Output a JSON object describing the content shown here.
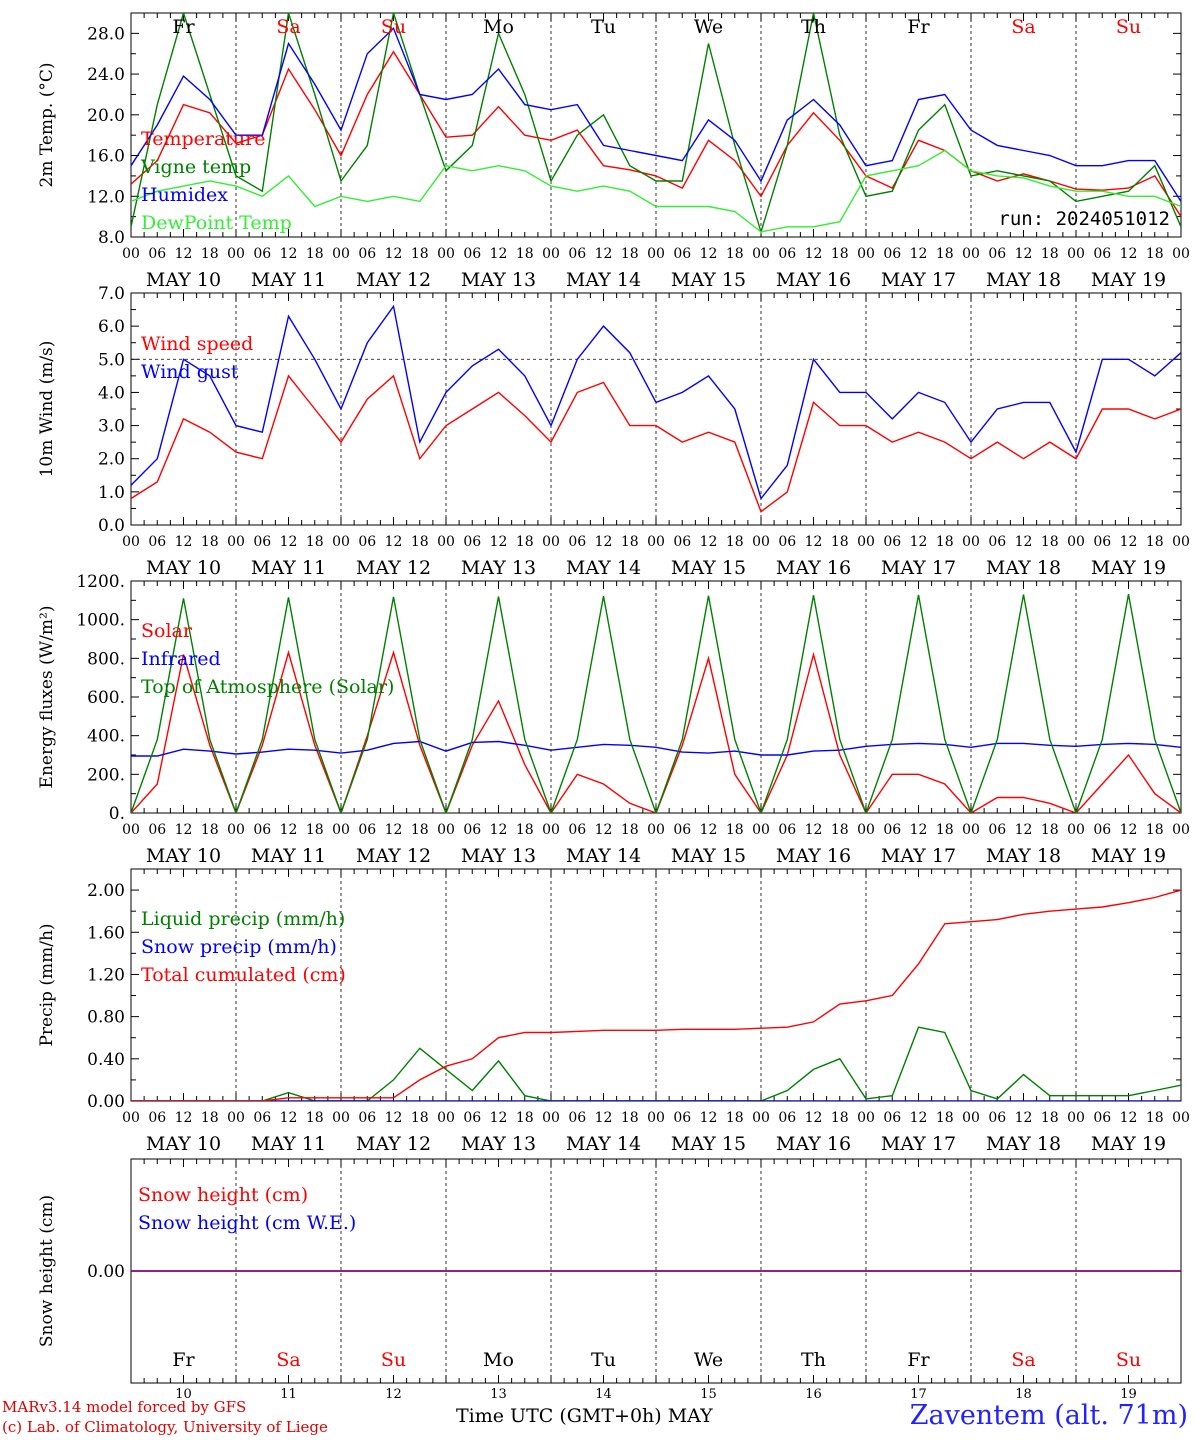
{
  "run_label": "run: 2024051012",
  "station": "Zaventem (alt. 71m)",
  "credit_lines": [
    "MARv3.14 model forced by GFS",
    "(c) Lab. of Climatology, University of Liege"
  ],
  "x_axis_label": "Time UTC (GMT+0h) MAY",
  "days": {
    "names": [
      "Fr",
      "Sa",
      "Su",
      "Mo",
      "Tu",
      "We",
      "Th",
      "Fr",
      "Sa",
      "Su"
    ],
    "weekend": [
      false,
      true,
      true,
      false,
      false,
      false,
      false,
      false,
      true,
      true
    ],
    "dates": [
      "MAY 10",
      "MAY 11",
      "MAY 12",
      "MAY 13",
      "MAY 14",
      "MAY 15",
      "MAY 16",
      "MAY 17",
      "MAY 18",
      "MAY 19"
    ],
    "numbers": [
      "10",
      "11",
      "12",
      "13",
      "14",
      "15",
      "16",
      "17",
      "18",
      "19"
    ],
    "hour_ticks": [
      "00",
      "06",
      "12",
      "18"
    ],
    "end_tick": "00"
  },
  "colors": {
    "red": "#ff0000",
    "green": "#008000",
    "blue": "#0000ff",
    "lightgreen": "#33ee33",
    "purple": "#800080"
  },
  "chart_data": [
    {
      "type": "line",
      "id": "temp",
      "ylabel": "2m Temp. (°C)",
      "ylim": [
        8,
        30
      ],
      "yticks": [
        "8.0",
        "12.0",
        "16.0",
        "20.0",
        "24.0",
        "28.0"
      ],
      "ytick_values": [
        8,
        12,
        16,
        20,
        24,
        28
      ],
      "hline": null,
      "legend": [
        "Temperature",
        "Vigne temp",
        "Humidex",
        "DewPoint Temp"
      ],
      "x_hours": [
        0,
        6,
        12,
        18,
        24,
        30,
        36,
        42,
        48,
        54,
        60,
        66,
        72,
        78,
        84,
        90,
        96,
        102,
        108,
        114,
        120,
        126,
        132,
        138,
        144,
        150,
        156,
        162,
        168,
        174,
        180,
        186,
        192,
        198,
        204,
        210,
        216,
        222,
        228,
        234,
        240
      ],
      "series": [
        {
          "name": "Temperature",
          "color": "red",
          "values": [
            13.2,
            15.5,
            21.0,
            20.2,
            17.2,
            18.0,
            24.5,
            20.5,
            16.0,
            22.0,
            26.2,
            22.0,
            17.8,
            18.0,
            20.8,
            18.0,
            17.5,
            18.5,
            15.0,
            14.6,
            14.0,
            12.8,
            17.5,
            15.5,
            12.0,
            17.0,
            20.2,
            17.5,
            14.0,
            12.8,
            17.5,
            16.5,
            14.5,
            13.5,
            14.2,
            13.5,
            12.7,
            12.6,
            12.8,
            14.0,
            10.0
          ]
        },
        {
          "name": "Vigne temp",
          "color": "green",
          "values": [
            9.0,
            21.0,
            30.0,
            22.0,
            14.0,
            12.5,
            30.0,
            22.0,
            13.5,
            17.0,
            30.0,
            22.0,
            14.5,
            17.0,
            28.0,
            22.0,
            13.5,
            18.0,
            20.0,
            15.0,
            13.5,
            13.5,
            27.0,
            17.0,
            8.5,
            17.0,
            30.0,
            18.0,
            12.0,
            12.5,
            18.5,
            21.0,
            14.0,
            14.5,
            14.0,
            13.5,
            11.5,
            12.0,
            12.5,
            15.0,
            9.0
          ]
        },
        {
          "name": "Humidex",
          "color": "blue",
          "values": [
            15.0,
            19.0,
            23.8,
            21.5,
            18.0,
            18.0,
            27.0,
            23.0,
            18.5,
            26.0,
            28.5,
            22.0,
            21.5,
            22.0,
            24.5,
            21.0,
            20.5,
            21.0,
            17.0,
            16.5,
            16.0,
            15.5,
            19.5,
            17.5,
            13.5,
            19.5,
            21.5,
            19.0,
            15.0,
            15.5,
            21.5,
            22.0,
            18.5,
            17.0,
            16.5,
            16.0,
            15.0,
            15.0,
            15.5,
            15.5,
            11.5
          ]
        },
        {
          "name": "DewPoint Temp",
          "color": "lightgreen",
          "values": [
            11.5,
            12.5,
            13.0,
            13.5,
            13.0,
            12.0,
            14.0,
            11.0,
            12.0,
            11.5,
            12.0,
            11.5,
            15.0,
            14.5,
            15.0,
            14.5,
            13.0,
            12.5,
            13.0,
            12.5,
            11.0,
            11.0,
            11.0,
            10.5,
            8.5,
            9.0,
            9.0,
            9.5,
            14.0,
            14.5,
            15.0,
            16.5,
            14.5,
            14.0,
            13.8,
            13.0,
            12.5,
            12.5,
            12.0,
            12.0,
            11.0
          ]
        }
      ]
    },
    {
      "type": "line",
      "id": "wind",
      "ylabel": "10m Wind (m/s)",
      "ylim": [
        0,
        7
      ],
      "yticks": [
        "0.0",
        "1.0",
        "2.0",
        "3.0",
        "4.0",
        "5.0",
        "6.0",
        "7.0"
      ],
      "ytick_values": [
        0,
        1,
        2,
        3,
        4,
        5,
        6,
        7
      ],
      "hline": 5,
      "legend": [
        "Wind speed",
        "Wind gust"
      ],
      "x_hours": [
        0,
        6,
        12,
        18,
        24,
        30,
        36,
        42,
        48,
        54,
        60,
        66,
        72,
        78,
        84,
        90,
        96,
        102,
        108,
        114,
        120,
        126,
        132,
        138,
        144,
        150,
        156,
        162,
        168,
        174,
        180,
        186,
        192,
        198,
        204,
        210,
        216,
        222,
        228,
        234,
        240
      ],
      "series": [
        {
          "name": "Wind speed",
          "color": "red",
          "values": [
            0.8,
            1.3,
            3.2,
            2.8,
            2.2,
            2.0,
            4.5,
            3.5,
            2.5,
            3.8,
            4.5,
            2.0,
            3.0,
            3.5,
            4.0,
            3.3,
            2.5,
            4.0,
            4.3,
            3.0,
            3.0,
            2.5,
            2.8,
            2.5,
            0.4,
            1.0,
            3.7,
            3.0,
            3.0,
            2.5,
            2.8,
            2.5,
            2.0,
            2.5,
            2.0,
            2.5,
            2.0,
            3.5,
            3.5,
            3.2,
            3.5
          ]
        },
        {
          "name": "Wind gust",
          "color": "blue",
          "values": [
            1.2,
            2.0,
            5.0,
            4.5,
            3.0,
            2.8,
            6.3,
            5.0,
            3.5,
            5.5,
            6.6,
            2.5,
            4.0,
            4.8,
            5.3,
            4.5,
            3.0,
            5.0,
            6.0,
            5.2,
            3.7,
            4.0,
            4.5,
            3.5,
            0.8,
            1.8,
            5.0,
            4.0,
            4.0,
            3.2,
            4.0,
            3.7,
            2.5,
            3.5,
            3.7,
            3.7,
            2.2,
            5.0,
            5.0,
            4.5,
            5.2
          ]
        }
      ]
    },
    {
      "type": "line",
      "id": "energy",
      "ylabel": "Energy fluxes (W/m²)",
      "ylim": [
        0,
        1200
      ],
      "yticks": [
        "0.",
        "200.",
        "400.",
        "600.",
        "800.",
        "1000.",
        "1200."
      ],
      "ytick_values": [
        0,
        200,
        400,
        600,
        800,
        1000,
        1200
      ],
      "hline": null,
      "legend": [
        "Solar",
        "Infrared",
        "Top of Atmosphere (Solar)"
      ],
      "x_hours": [
        0,
        6,
        12,
        18,
        24,
        30,
        36,
        42,
        48,
        54,
        60,
        66,
        72,
        78,
        84,
        90,
        96,
        102,
        108,
        114,
        120,
        126,
        132,
        138,
        144,
        150,
        156,
        162,
        168,
        174,
        180,
        186,
        192,
        198,
        204,
        210,
        216,
        222,
        228,
        234,
        240
      ],
      "series": [
        {
          "name": "Solar",
          "color": "red",
          "values": [
            0,
            150,
            820,
            350,
            0,
            350,
            830,
            350,
            0,
            400,
            830,
            350,
            0,
            350,
            580,
            250,
            0,
            200,
            150,
            50,
            0,
            350,
            800,
            200,
            0,
            300,
            820,
            300,
            0,
            200,
            200,
            150,
            0,
            80,
            80,
            50,
            0,
            150,
            300,
            100,
            0
          ]
        },
        {
          "name": "Infrared",
          "color": "blue",
          "values": [
            295,
            295,
            330,
            320,
            305,
            315,
            330,
            325,
            310,
            325,
            360,
            370,
            320,
            365,
            370,
            350,
            325,
            340,
            355,
            350,
            340,
            315,
            310,
            320,
            300,
            300,
            320,
            325,
            345,
            355,
            360,
            355,
            340,
            360,
            360,
            350,
            345,
            355,
            360,
            355,
            340
          ]
        },
        {
          "name": "Top of Atmosphere (Solar)",
          "color": "green",
          "values": [
            0,
            380,
            1110,
            380,
            0,
            380,
            1115,
            380,
            0,
            380,
            1118,
            380,
            0,
            380,
            1120,
            380,
            0,
            380,
            1122,
            380,
            0,
            380,
            1124,
            380,
            0,
            380,
            1126,
            380,
            0,
            380,
            1128,
            380,
            0,
            380,
            1130,
            380,
            0,
            380,
            1132,
            380,
            0
          ]
        }
      ]
    },
    {
      "type": "line",
      "id": "precip",
      "ylabel": "Precip (mm/h)",
      "ylim": [
        0,
        2.2
      ],
      "yticks": [
        "0.00",
        "0.40",
        "0.80",
        "1.20",
        "1.60",
        "2.00"
      ],
      "ytick_values": [
        0,
        0.4,
        0.8,
        1.2,
        1.6,
        2.0
      ],
      "hline": null,
      "legend": [
        "Liquid precip (mm/h)",
        "Snow precip (mm/h)",
        "Total cumulated (cm)"
      ],
      "x_hours": [
        0,
        6,
        12,
        18,
        24,
        30,
        36,
        42,
        48,
        54,
        60,
        66,
        72,
        78,
        84,
        90,
        96,
        102,
        108,
        114,
        120,
        126,
        132,
        138,
        144,
        150,
        156,
        162,
        168,
        174,
        180,
        186,
        192,
        198,
        204,
        210,
        216,
        222,
        228,
        234,
        240
      ],
      "series": [
        {
          "name": "Liquid precip (mm/h)",
          "color": "green",
          "values": [
            0,
            0,
            0,
            0,
            0,
            0,
            0.08,
            0,
            0,
            0,
            0.2,
            0.5,
            0.3,
            0.1,
            0.38,
            0.05,
            0,
            0,
            0,
            0,
            0,
            0,
            0,
            0,
            0,
            0.1,
            0.3,
            0.4,
            0.02,
            0.05,
            0.7,
            0.65,
            0.1,
            0.02,
            0.25,
            0.05,
            0.05,
            0.05,
            0.05,
            0.1,
            0.15
          ]
        },
        {
          "name": "Snow precip (mm/h)",
          "color": "blue",
          "values": [
            0,
            0,
            0,
            0,
            0,
            0,
            0,
            0,
            0,
            0,
            0,
            0,
            0,
            0,
            0,
            0,
            0,
            0,
            0,
            0,
            0,
            0,
            0,
            0,
            0,
            0,
            0,
            0,
            0,
            0,
            0,
            0,
            0,
            0,
            0,
            0,
            0,
            0,
            0,
            0,
            0
          ]
        },
        {
          "name": "Total cumulated (cm)",
          "color": "red",
          "values": [
            0,
            0,
            0,
            0,
            0,
            0,
            0.03,
            0.03,
            0.03,
            0.03,
            0.03,
            0.2,
            0.33,
            0.4,
            0.6,
            0.65,
            0.65,
            0.66,
            0.67,
            0.67,
            0.67,
            0.68,
            0.68,
            0.68,
            0.69,
            0.7,
            0.75,
            0.92,
            0.95,
            1.0,
            1.3,
            1.68,
            1.7,
            1.72,
            1.77,
            1.8,
            1.82,
            1.84,
            1.88,
            1.93,
            2.0
          ]
        }
      ]
    },
    {
      "type": "line",
      "id": "snow",
      "ylabel": "Snow height (cm)",
      "ylim": [
        -1,
        1
      ],
      "yticks": [
        "0.00"
      ],
      "ytick_values": [
        0
      ],
      "hline": null,
      "legend": [
        "Snow height (cm)",
        "Snow height (cm W.E.)"
      ],
      "x_hours": [
        0,
        240
      ],
      "series": [
        {
          "name": "Snow height (cm)",
          "color": "purple",
          "values": [
            0,
            0
          ]
        },
        {
          "name": "Snow height (cm W.E.)",
          "color": "purple",
          "values": [
            0,
            0
          ]
        }
      ]
    }
  ]
}
